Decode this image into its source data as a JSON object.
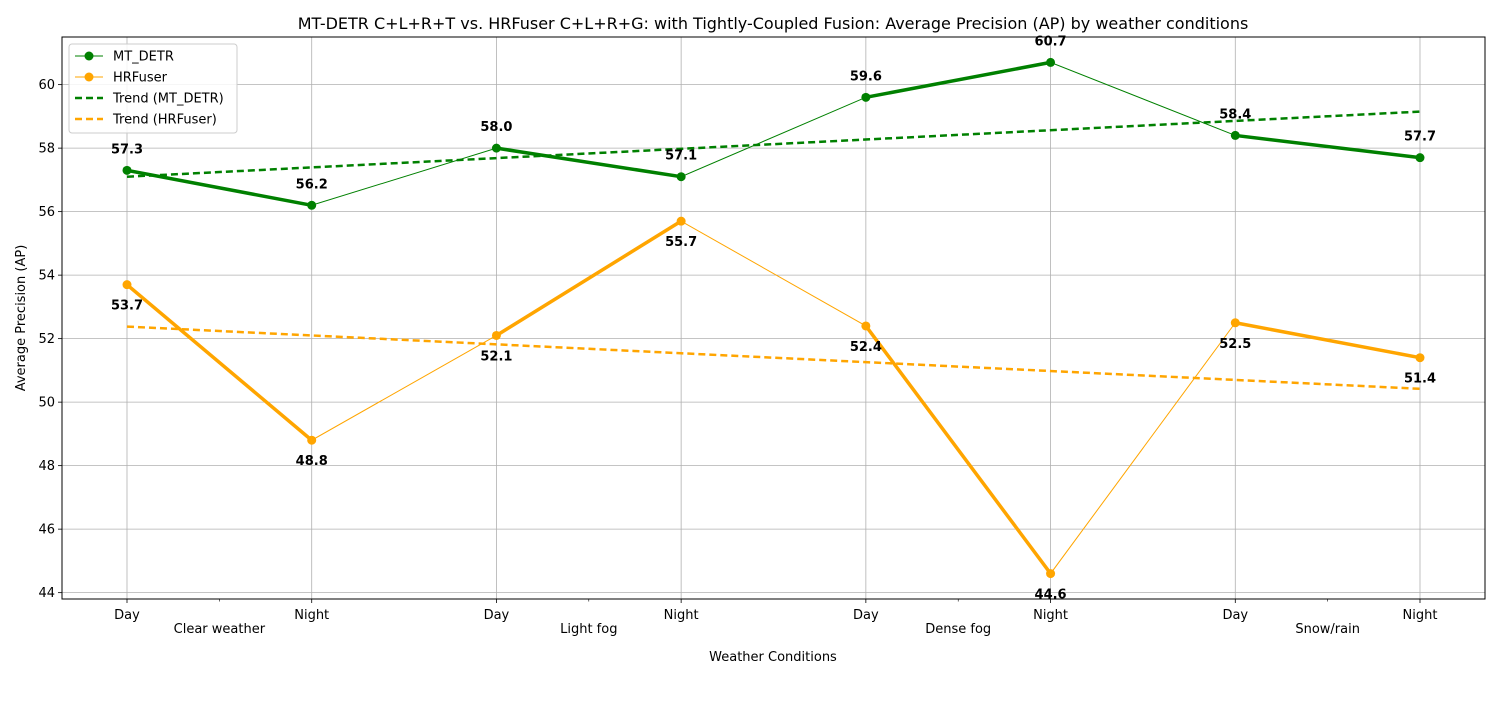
{
  "chart_data": {
    "type": "line",
    "title": "MT-DETR C+L+R+T vs. HRFuser C+L+R+G: with Tightly-Coupled Fusion: Average Precision (AP) by weather conditions",
    "xlabel": "Weather Conditions",
    "ylabel": "Average Precision (AP)",
    "ylim": [
      43.8,
      61.5
    ],
    "yticks": [
      44,
      46,
      48,
      50,
      52,
      54,
      56,
      58,
      60
    ],
    "grid": true,
    "legend_position": "upper-left",
    "categories": [
      "Day",
      "Night",
      "Day",
      "Night",
      "Day",
      "Night",
      "Day",
      "Night"
    ],
    "groups": [
      {
        "label": "Clear weather",
        "indices": [
          0,
          1
        ]
      },
      {
        "label": "Light fog",
        "indices": [
          2,
          3
        ]
      },
      {
        "label": "Dense fog",
        "indices": [
          4,
          5
        ]
      },
      {
        "label": "Snow/rain",
        "indices": [
          6,
          7
        ]
      }
    ],
    "series": [
      {
        "name": "MT_DETR",
        "color": "#008000",
        "values": [
          57.3,
          56.2,
          58.0,
          57.1,
          59.6,
          60.7,
          58.4,
          57.7
        ],
        "label_pos": [
          "above",
          "above",
          "above",
          "above",
          "above",
          "above",
          "above",
          "above"
        ]
      },
      {
        "name": "HRFuser",
        "color": "#FFA500",
        "values": [
          53.7,
          48.8,
          52.1,
          55.7,
          52.4,
          44.6,
          52.5,
          51.4
        ],
        "label_pos": [
          "below",
          "below",
          "below",
          "below",
          "below",
          "below",
          "below",
          "below"
        ]
      }
    ],
    "trends": [
      {
        "name": "Trend (MT_DETR)",
        "color": "#008000",
        "start": 57.1,
        "end": 59.15
      },
      {
        "name": "Trend (HRFuser)",
        "color": "#FFA500",
        "start": 52.38,
        "end": 50.42
      }
    ]
  }
}
